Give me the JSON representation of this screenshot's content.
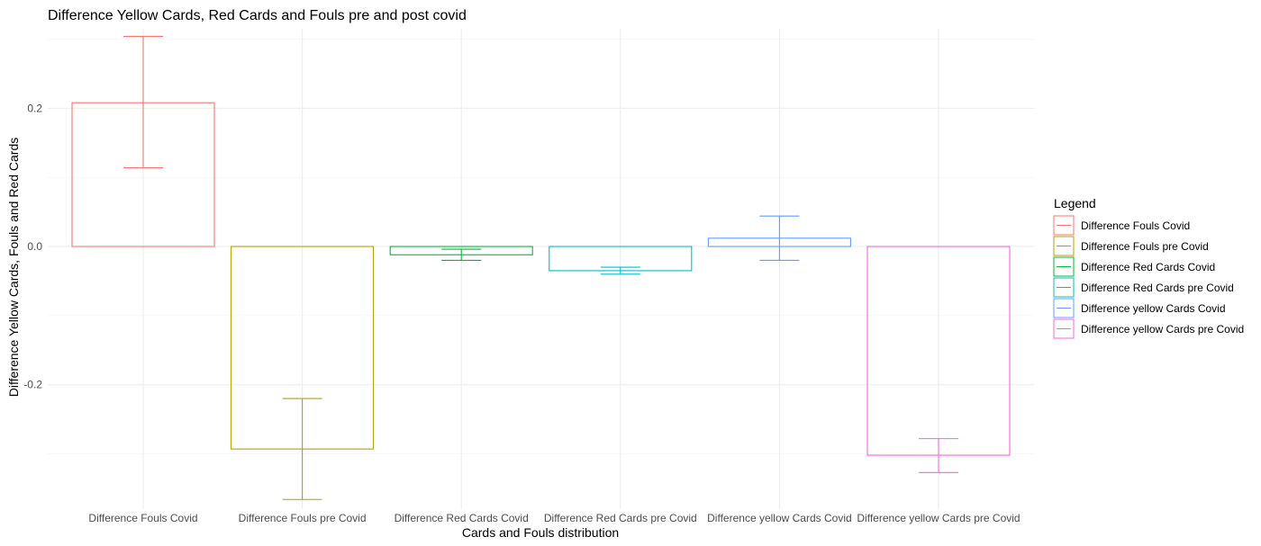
{
  "chart_data": {
    "type": "bar",
    "title": "Difference Yellow Cards, Red Cards and Fouls pre and post covid",
    "xlabel": "Cards and Fouls distribution",
    "ylabel": "Difference Yellow Cards, Fouls and Red Cards",
    "ylim": [
      -0.38,
      0.315
    ],
    "yticks": [
      0.2,
      0.0,
      -0.2
    ],
    "ytick_labels": [
      "0.2",
      "0.0",
      "-0.2"
    ],
    "grid": true,
    "legend": {
      "title": "Legend",
      "placement": "right",
      "entries": [
        "Difference Fouls Covid",
        "Difference Fouls pre Covid",
        "Difference Red Cards Covid",
        "Difference Red Cards pre Covid",
        "Difference yellow Cards Covid",
        "Difference yellow Cards pre Covid"
      ]
    },
    "categories": [
      "Difference Fouls Covid",
      "Difference Fouls pre Covid",
      "Difference Red Cards Covid",
      "Difference Red Cards pre Covid",
      "Difference yellow Cards Covid",
      "Difference yellow Cards pre Covid"
    ],
    "values": [
      0.208,
      -0.293,
      -0.012,
      -0.035,
      0.012,
      -0.302
    ],
    "error_low": [
      0.114,
      -0.366,
      -0.02,
      -0.04,
      -0.02,
      -0.327
    ],
    "error_high": [
      0.304,
      -0.22,
      -0.004,
      -0.03,
      0.044,
      -0.278
    ],
    "colors": [
      "#F8766D",
      "#B79F00",
      "#00BA38",
      "#00BFC4",
      "#619CFF",
      "#F564E3"
    ]
  }
}
